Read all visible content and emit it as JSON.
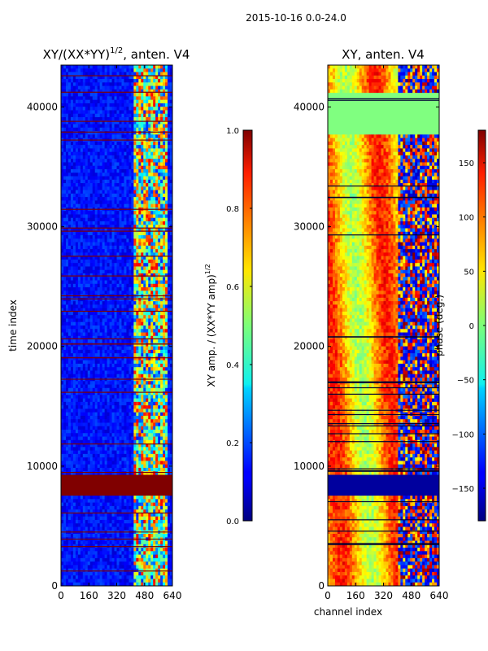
{
  "figure": {
    "suptitle": "2015-10-16 0.0-24.0"
  },
  "chart_data": [
    {
      "type": "heatmap",
      "title": "XY/(XX*YY)",
      "title_superscript": "1/2",
      "title_suffix": ", anten. V4",
      "xlabel": "",
      "ylabel": "time index",
      "xlim": [
        0,
        640
      ],
      "ylim": [
        0,
        43500
      ],
      "xticks": [
        0,
        160,
        320,
        480,
        640
      ],
      "yticks": [
        0,
        10000,
        20000,
        30000,
        40000
      ],
      "colorbar": {
        "label": "XY amp. / (XX*YY amp)",
        "label_superscript": "1/2",
        "range": [
          0.0,
          1.0
        ],
        "ticks": [
          "0.0",
          "0.2",
          "0.4",
          "0.6",
          "0.8",
          "1.0"
        ],
        "colormap": "jet"
      }
    },
    {
      "type": "heatmap",
      "title": "XY, anten. V4",
      "xlabel": "channel index",
      "ylabel": "",
      "xlim": [
        0,
        640
      ],
      "ylim": [
        0,
        43500
      ],
      "xticks": [
        0,
        160,
        320,
        480,
        640
      ],
      "yticks": [
        0,
        10000,
        20000,
        30000,
        40000
      ],
      "colorbar": {
        "label": "phase (deg.)",
        "range": [
          -180,
          180
        ],
        "ticks": [
          "150",
          "100",
          "50",
          "0",
          "−50",
          "−100",
          "−150"
        ],
        "tick_values": [
          150,
          100,
          50,
          0,
          -50,
          -100,
          -150
        ],
        "colormap": "jet"
      }
    }
  ]
}
